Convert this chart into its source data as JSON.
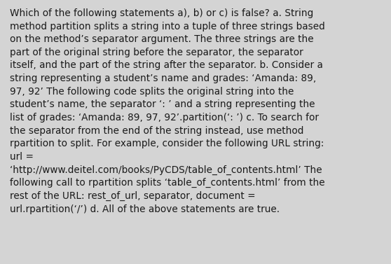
{
  "background_color": "#d4d4d4",
  "text_color": "#1a1a1a",
  "font_size": 9.8,
  "fig_width": 5.58,
  "fig_height": 3.77,
  "dpi": 100,
  "lines": [
    "Which of the following statements a), b) or c) is false? a. String",
    "method partition splits a string into a tuple of three strings based",
    "on the method’s separator argument. The three strings are the",
    "part of the original string before the separator, the separator",
    "itself, and the part of the string after the separator. b. Consider a",
    "string representing a student’s name and grades: ‘Amanda: 89,",
    "97, 92’ The following code splits the original string into the",
    "student’s name, the separator ‘: ’ and a string representing the",
    "list of grades: ‘Amanda: 89, 97, 92’.partition(‘: ’) c. To search for",
    "the separator from the end of the string instead, use method",
    "rpartition to split. For example, consider the following URL string:",
    "url =",
    "‘http://www.deitel.com/books/PyCDS/table_of_contents.html’ The",
    "following call to rpartition splits ‘table_of_contents.html’ from the",
    "rest of the URL: rest_of_url, separator, document =",
    "url.rpartition(‘/’) d. All of the above statements are true."
  ]
}
